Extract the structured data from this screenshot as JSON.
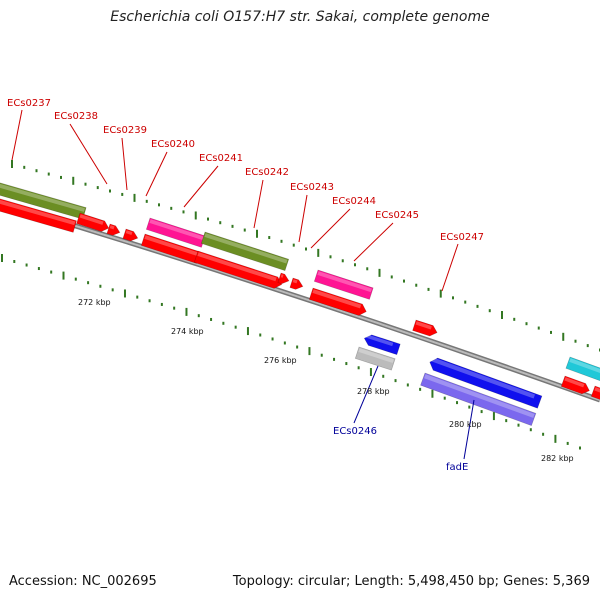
{
  "title": "Escherichia coli O157:H7 str. Sakai, complete genome",
  "footer": {
    "accession": "Accession: NC_002695",
    "topology": "Topology: circular; Length: 5,498,450 bp; Genes: 5,369"
  },
  "colors": {
    "forward_label": "#cc0000",
    "reverse_label": "#000099",
    "cds": "#ff0000",
    "backbone": "#888888",
    "ticks": "#337722",
    "olive": "#6b8e23",
    "magenta": "#ff1493",
    "blue": "#1010ee",
    "slate": "#7b68ee",
    "gray": "#bbbbbb",
    "cyan": "#20c8d8"
  },
  "kbp_labels": [
    "272 kbp",
    "274 kbp",
    "276 kbp",
    "278 kbp",
    "280 kbp",
    "282 kbp"
  ],
  "gene_labels_forward": [
    "ECs0237",
    "ECs0238",
    "ECs0239",
    "ECs0240",
    "ECs0241",
    "ECs0242",
    "ECs0243",
    "ECs0244",
    "ECs0245",
    "ECs0247"
  ],
  "gene_labels_reverse": [
    "ECs0246",
    "fadE"
  ]
}
